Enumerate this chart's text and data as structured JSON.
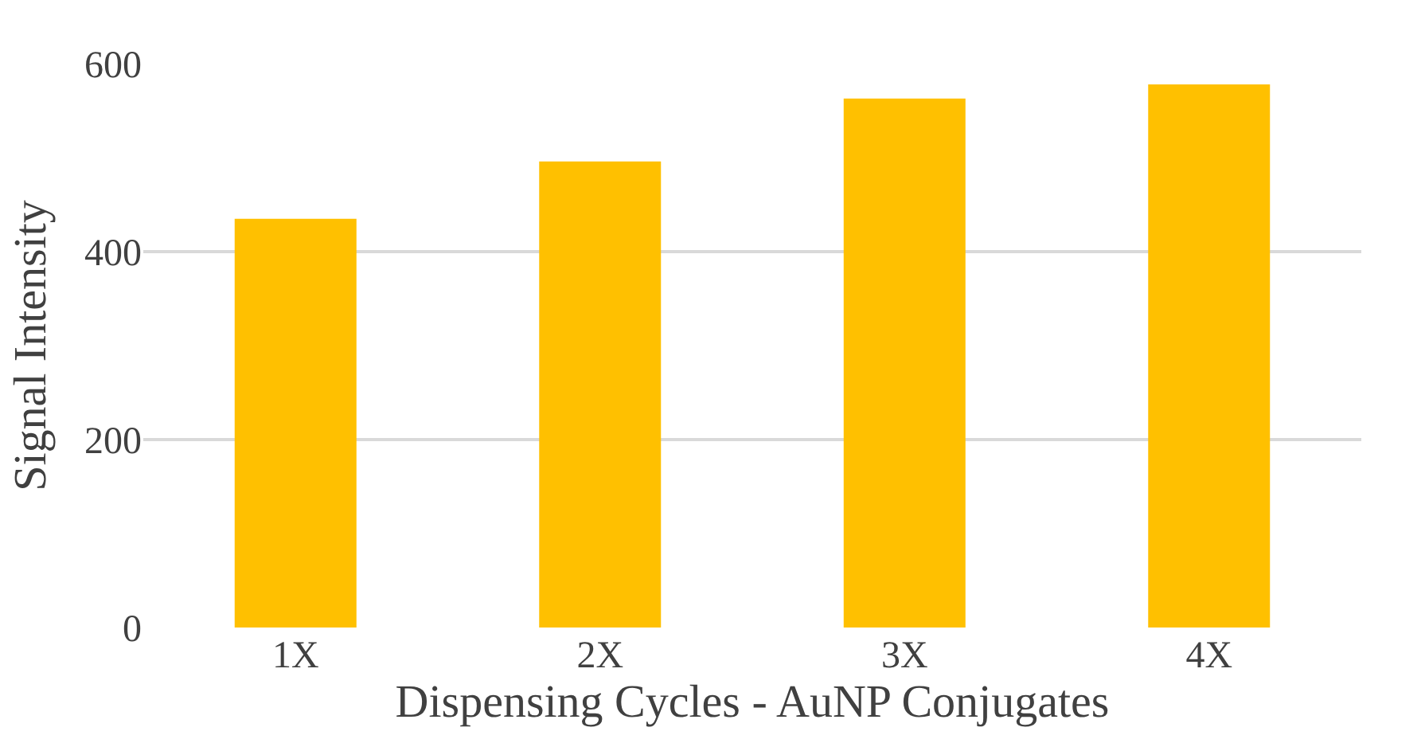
{
  "chart_data": {
    "type": "bar",
    "xlabel": "Dispensing Cycles - AuNP Conjugates",
    "ylabel": "Signal Intensity",
    "categories": [
      "1X",
      "2X",
      "3X",
      "4X"
    ],
    "values": [
      435,
      496,
      563,
      578
    ],
    "color": "#ffc000",
    "ylim": [
      0,
      600
    ],
    "yticks": [
      0,
      200,
      400,
      600
    ],
    "grid": "y"
  }
}
